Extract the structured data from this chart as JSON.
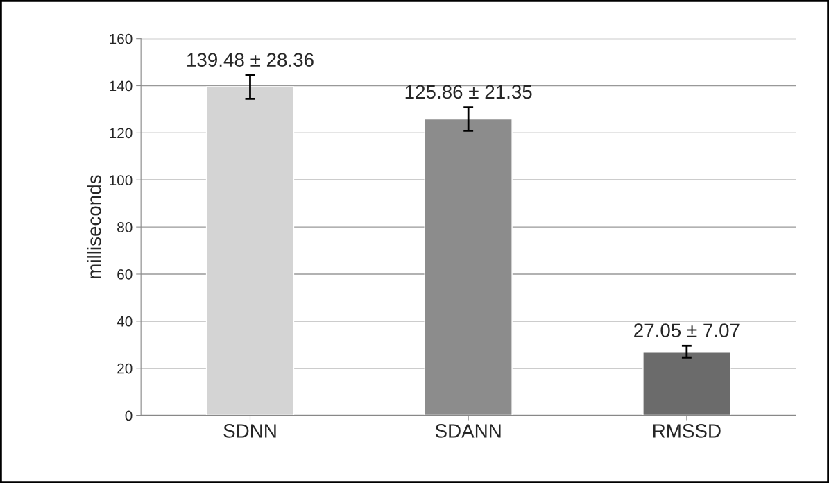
{
  "chart_data": {
    "type": "bar",
    "ylabel": "milliseconds",
    "categories": [
      "SDNN",
      "SDANN",
      "RMSSD"
    ],
    "values": [
      139.48,
      125.86,
      27.05
    ],
    "colors": [
      "#d4d4d4",
      "#8c8c8c",
      "#6b6b6b"
    ],
    "errors": [
      5,
      5,
      2.5
    ],
    "value_labels": [
      "139.48 ± 28.36",
      "125.86 ± 21.35",
      "27.05 ± 7.07"
    ],
    "ylim": [
      0,
      160
    ],
    "yticks": [
      0,
      20,
      40,
      60,
      80,
      100,
      120,
      140,
      160
    ],
    "grid": "y",
    "legend": false
  }
}
